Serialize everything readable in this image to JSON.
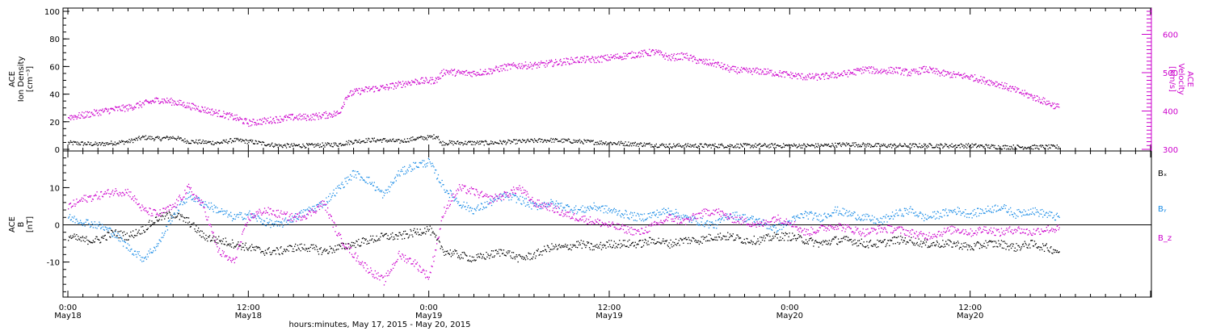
{
  "colors": {
    "black": "#000000",
    "magenta": "#cc00cc",
    "blue": "#1a8ce6"
  },
  "x_axis": {
    "title": "hours:minutes, May 17, 2015 - May 20, 2015",
    "range_hours": [
      0,
      72
    ],
    "ticks": [
      {
        "h": 0,
        "time": "0:00",
        "date": "May18"
      },
      {
        "h": 12,
        "time": "12:00",
        "date": "May18"
      },
      {
        "h": 24,
        "time": "0:00",
        "date": "May19"
      },
      {
        "h": 36,
        "time": "12:00",
        "date": "May19"
      },
      {
        "h": 48,
        "time": "0:00",
        "date": "May20"
      },
      {
        "h": 60,
        "time": "12:00",
        "date": "May20"
      }
    ]
  },
  "chart_data": [
    {
      "type": "scatter",
      "panel": "plasma",
      "ylabel_left": [
        "ACE",
        "Ion Density",
        "[cm⁻³]"
      ],
      "ylabel_right": [
        "ACE",
        "Velocity",
        "[km/s]"
      ],
      "ylim_left": [
        0,
        100
      ],
      "ylim_right": [
        300,
        660
      ],
      "left_ticks": [
        0,
        20,
        40,
        60,
        80,
        100
      ],
      "right_ticks": [
        300,
        400,
        500,
        600
      ],
      "series": [
        {
          "name": "Ion Density",
          "axis": "left",
          "color": "#000000",
          "x_hours": [
            0,
            2,
            4,
            5,
            6,
            7,
            8,
            10,
            11,
            12,
            14,
            16,
            18,
            19,
            20,
            21,
            22,
            23,
            24,
            24.6,
            24.7,
            28,
            30,
            32,
            34,
            36,
            38,
            40,
            42,
            44,
            46,
            48,
            50,
            52,
            54,
            56,
            58,
            60,
            62,
            64,
            65.9
          ],
          "values": [
            5,
            4,
            6,
            9,
            8,
            9,
            6,
            5,
            7,
            6,
            3,
            3,
            4,
            6,
            7,
            7,
            6,
            8,
            9,
            10,
            5,
            5,
            6,
            7,
            6,
            5,
            4,
            3,
            3,
            3,
            3,
            3,
            3,
            4,
            3,
            3,
            3,
            3,
            2,
            2,
            2
          ]
        },
        {
          "name": "Velocity",
          "axis": "right",
          "color": "#cc00cc",
          "x_hours": [
            0,
            1,
            2,
            3,
            4,
            5,
            6,
            7,
            8,
            9,
            10,
            11,
            12,
            13,
            14,
            15,
            16,
            17,
            18,
            18.5,
            19,
            20,
            21,
            22,
            23,
            24,
            24.5,
            25,
            26,
            27,
            28,
            29,
            30,
            31,
            32,
            33,
            34,
            35,
            36,
            37,
            38,
            39,
            40,
            41,
            42,
            43,
            44,
            45,
            46,
            47,
            48,
            49,
            50,
            51,
            52,
            53,
            54,
            55,
            56,
            57,
            58,
            59,
            60,
            61,
            62,
            63,
            64,
            65,
            65.9
          ],
          "values": [
            385,
            390,
            398,
            405,
            410,
            420,
            430,
            425,
            415,
            405,
            395,
            385,
            370,
            375,
            380,
            385,
            385,
            390,
            395,
            440,
            450,
            458,
            462,
            470,
            478,
            480,
            482,
            505,
            500,
            500,
            505,
            515,
            520,
            520,
            525,
            530,
            535,
            535,
            540,
            545,
            550,
            555,
            540,
            545,
            530,
            525,
            510,
            505,
            505,
            500,
            495,
            490,
            490,
            495,
            500,
            510,
            505,
            508,
            500,
            510,
            500,
            495,
            490,
            480,
            470,
            455,
            440,
            425,
            410
          ]
        }
      ]
    },
    {
      "type": "scatter",
      "panel": "magnetic",
      "ylabel_left": [
        "ACE",
        "B",
        "[nT]"
      ],
      "ylim": [
        -19,
        19
      ],
      "left_ticks": [
        -10,
        0,
        10
      ],
      "legend": [
        "Bₓ",
        "Bᵧ",
        "B_z"
      ],
      "series": [
        {
          "name": "Bx",
          "color": "#000000",
          "x_hours": [
            0,
            1,
            2,
            3,
            4,
            5,
            6,
            7,
            8,
            9,
            10,
            11,
            12,
            13,
            14,
            15,
            16,
            17,
            18,
            19,
            20,
            21,
            22,
            23,
            24,
            25,
            26,
            27,
            28,
            29,
            30,
            31,
            32,
            33,
            34,
            35,
            36,
            37,
            38,
            39,
            40,
            41,
            42,
            43,
            44,
            45,
            46,
            47,
            48,
            49,
            50,
            51,
            52,
            53,
            54,
            55,
            56,
            57,
            58,
            59,
            60,
            61,
            62,
            63,
            64,
            65,
            65.9
          ],
          "values": [
            -3,
            -4,
            -4,
            -2,
            -3,
            -1,
            2,
            3,
            1,
            -3,
            -4,
            -5,
            -6,
            -7,
            -7,
            -6,
            -6,
            -7,
            -6,
            -5,
            -4,
            -3,
            -3,
            -2,
            -1,
            -7,
            -8,
            -9,
            -8,
            -7,
            -9,
            -8,
            -6,
            -6,
            -5,
            -6,
            -5,
            -5,
            -5,
            -4,
            -5,
            -4,
            -4,
            -3,
            -3,
            -4,
            -4,
            -3,
            -3,
            -4,
            -5,
            -4,
            -4,
            -5,
            -5,
            -4,
            -4,
            -5,
            -5,
            -5,
            -6,
            -5,
            -5,
            -6,
            -5,
            -6,
            -7
          ]
        },
        {
          "name": "By",
          "color": "#1a8ce6",
          "x_hours": [
            0,
            1,
            2,
            3,
            4,
            5,
            6,
            7,
            8,
            9,
            10,
            11,
            12,
            13,
            14,
            15,
            16,
            17,
            18,
            19,
            20,
            21,
            22,
            23,
            24,
            25,
            26,
            27,
            28,
            29,
            30,
            31,
            32,
            33,
            34,
            35,
            36,
            37,
            38,
            39,
            40,
            41,
            42,
            43,
            44,
            45,
            46,
            47,
            48,
            49,
            50,
            51,
            52,
            53,
            54,
            55,
            56,
            57,
            58,
            59,
            60,
            61,
            62,
            63,
            64,
            65,
            65.9
          ],
          "values": [
            2,
            1,
            0,
            -2,
            -6,
            -9,
            -5,
            3,
            8,
            6,
            4,
            2,
            3,
            1,
            0,
            2,
            4,
            6,
            10,
            14,
            12,
            8,
            14,
            16,
            17,
            10,
            6,
            4,
            6,
            8,
            7,
            5,
            6,
            5,
            4,
            5,
            4,
            3,
            2,
            3,
            4,
            2,
            1,
            0,
            3,
            2,
            1,
            -1,
            1,
            3,
            2,
            4,
            3,
            2,
            1,
            3,
            4,
            2,
            3,
            4,
            3,
            4,
            5,
            3,
            4,
            3,
            2
          ]
        },
        {
          "name": "Bz",
          "color": "#cc00cc",
          "x_hours": [
            0,
            1,
            2,
            3,
            4,
            5,
            6,
            7,
            8,
            9,
            10,
            11,
            12,
            13,
            14,
            15,
            16,
            17,
            18,
            19,
            20,
            21,
            22,
            23,
            24,
            25,
            26,
            27,
            28,
            29,
            30,
            31,
            32,
            33,
            34,
            35,
            36,
            37,
            38,
            39,
            40,
            41,
            42,
            43,
            44,
            45,
            46,
            47,
            48,
            49,
            50,
            51,
            52,
            53,
            54,
            55,
            56,
            57,
            58,
            59,
            60,
            61,
            62,
            63,
            64,
            65,
            65.9
          ],
          "values": [
            5,
            7,
            8,
            9,
            9,
            4,
            3,
            5,
            10,
            5,
            -7,
            -10,
            2,
            4,
            3,
            2,
            3,
            6,
            -3,
            -8,
            -12,
            -15,
            -8,
            -10,
            -14,
            4,
            10,
            9,
            7,
            8,
            10,
            6,
            5,
            3,
            2,
            1,
            0,
            -1,
            -2,
            0,
            2,
            1,
            3,
            4,
            2,
            1,
            0,
            2,
            1,
            -2,
            -1,
            0,
            -1,
            -2,
            -1,
            -1,
            -2,
            -3,
            -2,
            -1,
            -2,
            -1,
            -2,
            -1,
            -2,
            -1,
            -1
          ]
        }
      ]
    }
  ]
}
